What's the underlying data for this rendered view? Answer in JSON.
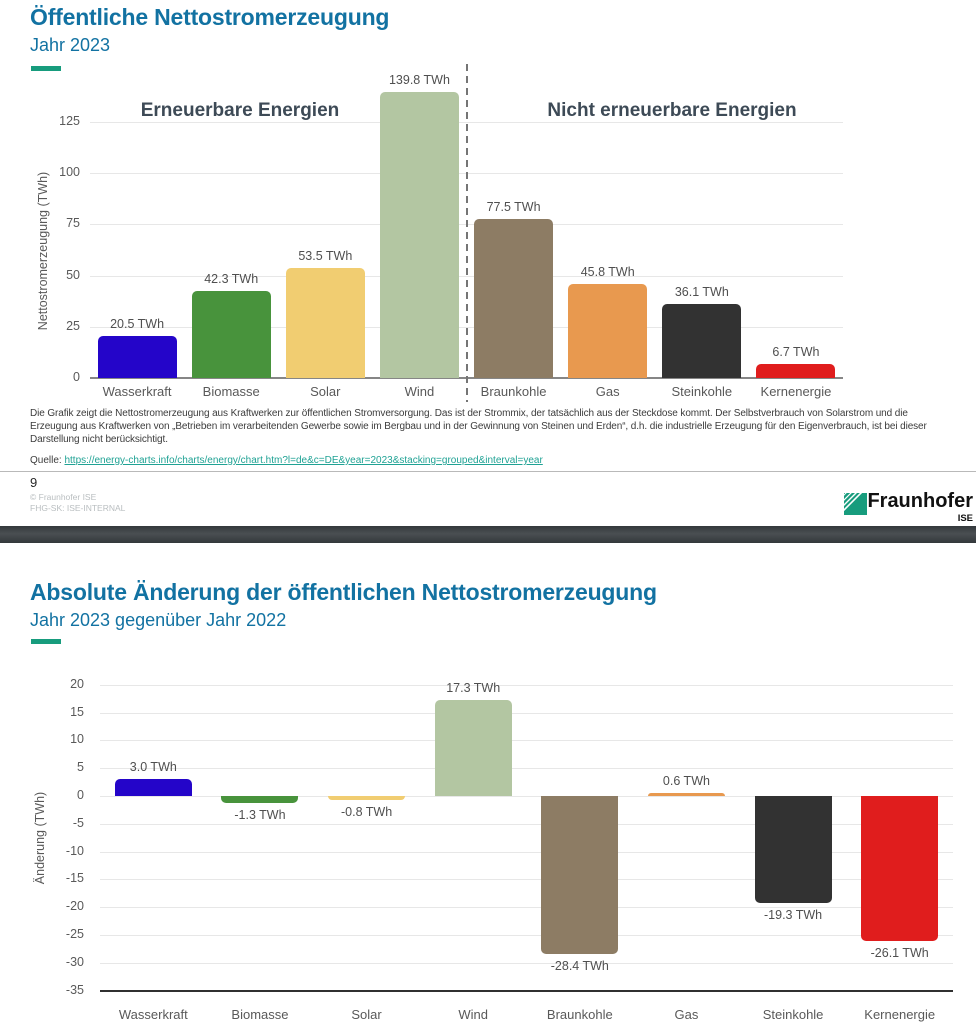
{
  "colors": {
    "title_blue": "#1272a2",
    "accent_teal": "#179c7d",
    "link_teal": "#1fa294",
    "grid": "#e7e7e7",
    "axis_gray": "#868686",
    "axis_dark": "#303030",
    "group_label": "#3d4a56",
    "separator_bar": "#3c4144",
    "logo_green": "#179c7d"
  },
  "slide1": {
    "title": "Öffentliche Nettostromerzeugung",
    "subtitle": "Jahr 2023",
    "footnote_lines": [
      "Die Grafik zeigt die Nettostromerzeugung aus Kraftwerken zur öffentlichen Stromversorgung. Das ist der Strommix, der tatsächlich aus der Steckdose kommt. Der Selbstverbrauch von Solarstrom und die",
      "Erzeugung aus Kraftwerken von „Betrieben im verarbeitenden Gewerbe sowie im Bergbau und in der Gewinnung von Steinen und Erden“, d.h. die industrielle Erzeugung für den Eigenverbrauch, ist bei dieser",
      "Darstellung nicht berücksichtigt."
    ],
    "source_label": "Quelle:",
    "source_url": "https://energy-charts.info/charts/energy/chart.htm?l=de&c=DE&year=2023&stacking=grouped&interval=year",
    "page_number": "9",
    "copyright_line1": "© Fraunhofer ISE",
    "copyright_line2": "FHG-SK: ISE-INTERNAL",
    "logo": {
      "brand": "Fraunhofer",
      "unit": "ISE"
    }
  },
  "slide2": {
    "title": "Absolute Änderung der öffentlichen Nettostromerzeugung",
    "subtitle": "Jahr 2023 gegenüber Jahr 2022"
  },
  "chart_data": [
    {
      "type": "bar",
      "title": "Öffentliche Nettostromerzeugung",
      "subtitle": "Jahr 2023",
      "ylabel": "Nettostromerzeugung (TWh)",
      "xlabel": "",
      "yticks": [
        0,
        25,
        50,
        75,
        100,
        125
      ],
      "ylim": [
        0,
        145
      ],
      "grid": true,
      "legend": "none",
      "categories": [
        "Wasserkraft",
        "Biomasse",
        "Solar",
        "Wind",
        "Braunkohle",
        "Gas",
        "Steinkohle",
        "Kernenergie"
      ],
      "values": [
        20.5,
        42.3,
        53.5,
        139.8,
        77.5,
        45.8,
        36.1,
        6.7
      ],
      "value_labels": [
        "20.5 TWh",
        "42.3 TWh",
        "53.5 TWh",
        "139.8 TWh",
        "77.5 TWh",
        "45.8 TWh",
        "36.1 TWh",
        "6.7 TWh"
      ],
      "bar_colors": [
        "#2405c9",
        "#48933c",
        "#f1cd71",
        "#b3c6a2",
        "#8d7c64",
        "#e8994f",
        "#323232",
        "#e01d1d"
      ],
      "group_labels": [
        "Erneuerbare Energien",
        "Nicht erneuerbare Energien"
      ],
      "divider_after_category": "Wind"
    },
    {
      "type": "bar",
      "title": "Absolute Änderung der öffentlichen Nettostromerzeugung",
      "subtitle": "Jahr 2023 gegenüber Jahr 2022",
      "ylabel": "Änderung (TWh)",
      "xlabel": "",
      "yticks": [
        20,
        15,
        10,
        5,
        0,
        -5,
        -10,
        -15,
        -20,
        -25,
        -30,
        -35
      ],
      "ylim": [
        -35,
        20
      ],
      "grid": true,
      "legend": "none",
      "categories": [
        "Wasserkraft",
        "Biomasse",
        "Solar",
        "Wind",
        "Braunkohle",
        "Gas",
        "Steinkohle",
        "Kernenergie"
      ],
      "values": [
        3.0,
        -1.3,
        -0.8,
        17.3,
        -28.4,
        0.6,
        -19.3,
        -26.1
      ],
      "value_labels": [
        "3.0 TWh",
        "-1.3 TWh",
        "-0.8 TWh",
        "17.3 TWh",
        "-28.4 TWh",
        "0.6 TWh",
        "-19.3 TWh",
        "-26.1 TWh"
      ],
      "bar_colors": [
        "#2405c9",
        "#48933c",
        "#f1cd71",
        "#b3c6a2",
        "#8d7c64",
        "#e8994f",
        "#323232",
        "#e01d1d"
      ]
    }
  ]
}
